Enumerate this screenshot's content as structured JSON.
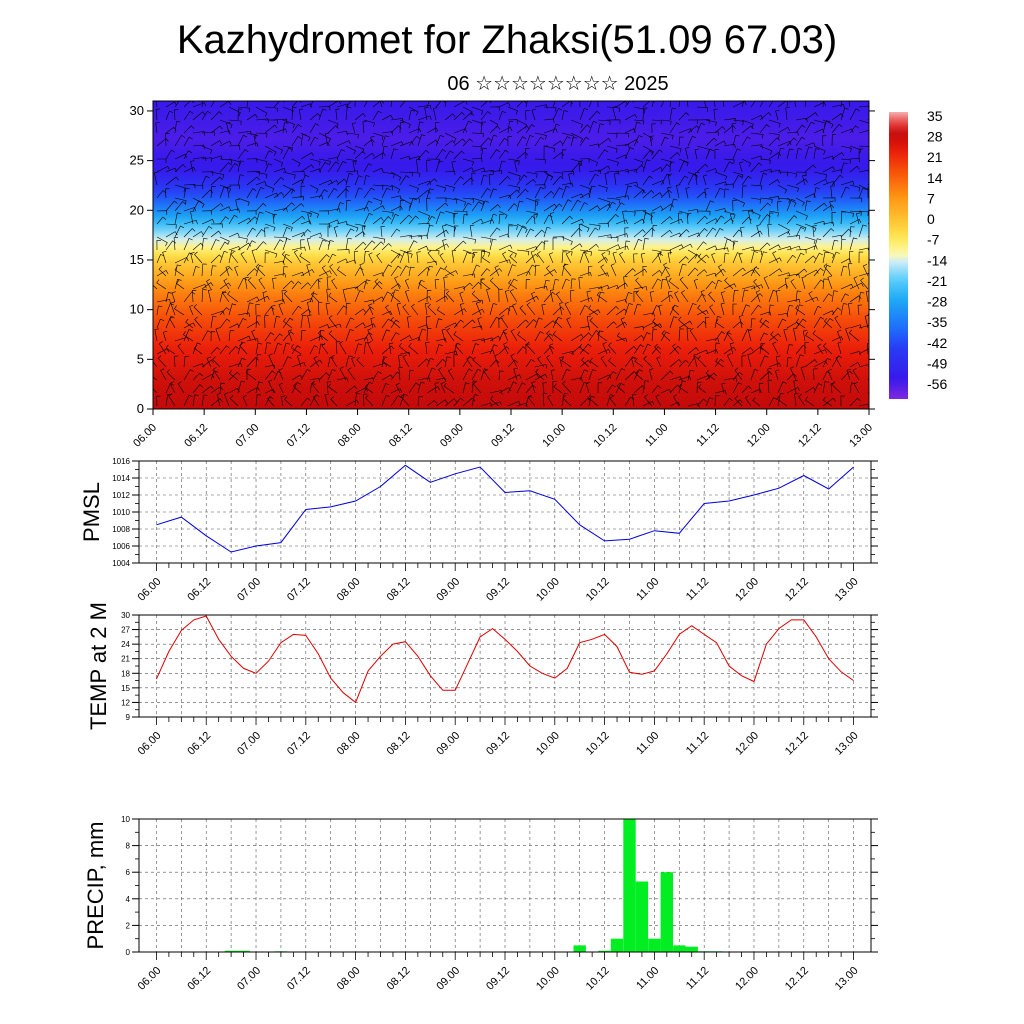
{
  "header": {
    "title": "Kazhydromet for Zhaksi(51.09 67.03)",
    "subtitle": "06 ☆☆☆☆☆☆☆☆ 2025"
  },
  "colors": {
    "pmsl_line": "#0000dd",
    "temp_line": "#dd0000",
    "precip_bar": "#00ee22",
    "grid": "#555555",
    "barb": "#000000"
  },
  "chart_data": [
    {
      "type": "heatmap",
      "title": "",
      "ylabel": "",
      "ylim": [
        0,
        31
      ],
      "yticks": [
        0,
        5,
        10,
        15,
        20,
        25,
        30
      ],
      "xlim": [
        0,
        28
      ],
      "x_tick_labels": [
        "06.00",
        "06.12",
        "07.00",
        "07.12",
        "08.00",
        "08.12",
        "09.00",
        "09.12",
        "10.00",
        "10.12",
        "11.00",
        "11.12",
        "12.00",
        "12.12",
        "13.00"
      ],
      "colorbar": {
        "labels": [
          35,
          28,
          21,
          14,
          7,
          0,
          -7,
          -14,
          -21,
          -28,
          -35,
          -42,
          -49,
          -56
        ],
        "range": [
          -63,
          38
        ],
        "placement": "right"
      },
      "overlay": "wind barbs",
      "temperature_profile": {
        "levels": [
          0,
          3,
          6,
          9,
          12,
          15,
          18,
          21,
          24,
          27,
          31
        ],
        "values": [
          30,
          28,
          24,
          18,
          10,
          -2,
          -20,
          -40,
          -55,
          -58,
          -56
        ]
      }
    },
    {
      "type": "line",
      "ylabel": "PMSL",
      "ylim": [
        1004,
        1016
      ],
      "yticks": [
        1004,
        1006,
        1008,
        1010,
        1012,
        1014,
        1016
      ],
      "xlim": [
        -0.7,
        28.7
      ],
      "x_tick_labels": [
        "06.00",
        "06.12",
        "07.00",
        "07.12",
        "08.00",
        "08.12",
        "09.00",
        "09.12",
        "10.00",
        "10.12",
        "11.00",
        "11.12",
        "12.00",
        "12.12",
        "13.00"
      ],
      "x": [
        0,
        1,
        2,
        3,
        4,
        5,
        6,
        7,
        8,
        9,
        10,
        11,
        12,
        13,
        14,
        15,
        16,
        17,
        18,
        19,
        20,
        21,
        22,
        23,
        24,
        25,
        26,
        27,
        28
      ],
      "values": [
        1008.5,
        1009.4,
        1007.2,
        1005.3,
        1006.0,
        1006.4,
        1010.3,
        1010.6,
        1011.3,
        1013.0,
        1015.5,
        1013.5,
        1014.5,
        1015.3,
        1012.3,
        1012.5,
        1011.5,
        1008.5,
        1006.6,
        1006.8,
        1007.8,
        1007.5,
        1011.0,
        1011.3,
        1012.0,
        1012.8,
        1014.3,
        1012.7,
        1015.3
      ],
      "grid": true
    },
    {
      "type": "line",
      "ylabel": "TEMP at 2 M",
      "ylim": [
        9,
        30
      ],
      "yticks": [
        9,
        12,
        15,
        18,
        21,
        24,
        27,
        30
      ],
      "xlim": [
        -0.7,
        28.7
      ],
      "x_tick_labels": [
        "06.00",
        "06.12",
        "07.00",
        "07.12",
        "08.00",
        "08.12",
        "09.00",
        "09.12",
        "10.00",
        "10.12",
        "11.00",
        "11.12",
        "12.00",
        "12.12",
        "13.00"
      ],
      "x": [
        0,
        0.5,
        1,
        1.5,
        2,
        2.5,
        3,
        3.5,
        4,
        4.5,
        5,
        5.5,
        6,
        6.5,
        7,
        7.5,
        8,
        8.5,
        9,
        9.5,
        10,
        10.5,
        11,
        11.5,
        12,
        12.5,
        13,
        13.5,
        14,
        14.5,
        15,
        15.5,
        16,
        16.5,
        17,
        17.5,
        18,
        18.5,
        19,
        19.5,
        20,
        20.5,
        21,
        21.5,
        22,
        22.5,
        23,
        23.5,
        24,
        24.5,
        25,
        25.5,
        26,
        26.5,
        27,
        27.5,
        28
      ],
      "values": [
        16.8,
        22.5,
        26.8,
        29.0,
        29.8,
        25.0,
        21.5,
        19.0,
        18.0,
        20.5,
        24.3,
        26.0,
        25.8,
        22.0,
        17.0,
        14.0,
        12.0,
        18.5,
        21.5,
        24.0,
        24.5,
        21.5,
        17.5,
        14.5,
        14.5,
        20.0,
        25.5,
        27.2,
        25.0,
        22.5,
        19.5,
        18.0,
        17.0,
        19.0,
        24.3,
        25.0,
        26.0,
        23.5,
        18.2,
        17.8,
        18.5,
        22.0,
        26.0,
        27.8,
        26.0,
        24.3,
        19.5,
        17.5,
        16.3,
        24.0,
        27.2,
        29.0,
        29.0,
        25.5,
        21.0,
        18.3,
        16.5
      ],
      "grid": true
    },
    {
      "type": "bar",
      "ylabel": "PRECIP, mm",
      "ylim": [
        0,
        10
      ],
      "yticks": [
        0,
        2,
        4,
        6,
        8,
        10
      ],
      "xlim": [
        -0.7,
        28.7
      ],
      "x_tick_labels": [
        "06.00",
        "06.12",
        "07.00",
        "07.12",
        "08.00",
        "08.12",
        "09.00",
        "09.12",
        "10.00",
        "10.12",
        "11.00",
        "11.12",
        "12.00",
        "12.12",
        "13.00"
      ],
      "x": [
        0,
        0.5,
        1,
        1.5,
        2,
        2.5,
        3,
        3.5,
        4,
        4.5,
        5,
        5.5,
        6,
        6.5,
        7,
        7.5,
        8,
        8.5,
        9,
        9.5,
        10,
        10.5,
        11,
        11.5,
        12,
        12.5,
        13,
        13.5,
        14,
        14.5,
        15,
        15.5,
        16,
        16.5,
        17,
        17.5,
        18,
        18.5,
        19,
        19.5,
        20,
        20.5,
        21,
        21.5,
        22,
        22.5,
        23,
        23.5,
        24,
        24.5,
        25,
        25.5,
        26,
        26.5,
        27,
        27.5,
        28
      ],
      "values": [
        0,
        0,
        0,
        0,
        0,
        0,
        0.1,
        0.1,
        0,
        0,
        0.05,
        0,
        0,
        0,
        0,
        0,
        0,
        0,
        0,
        0,
        0,
        0,
        0,
        0,
        0,
        0,
        0,
        0,
        0,
        0,
        0,
        0,
        0,
        0,
        0.5,
        0,
        0.1,
        1.0,
        10.0,
        5.3,
        1.0,
        6.0,
        0.5,
        0.4,
        0.05,
        0.05,
        0,
        0,
        0,
        0,
        0,
        0,
        0,
        0,
        0,
        0,
        0
      ],
      "grid": true
    }
  ]
}
